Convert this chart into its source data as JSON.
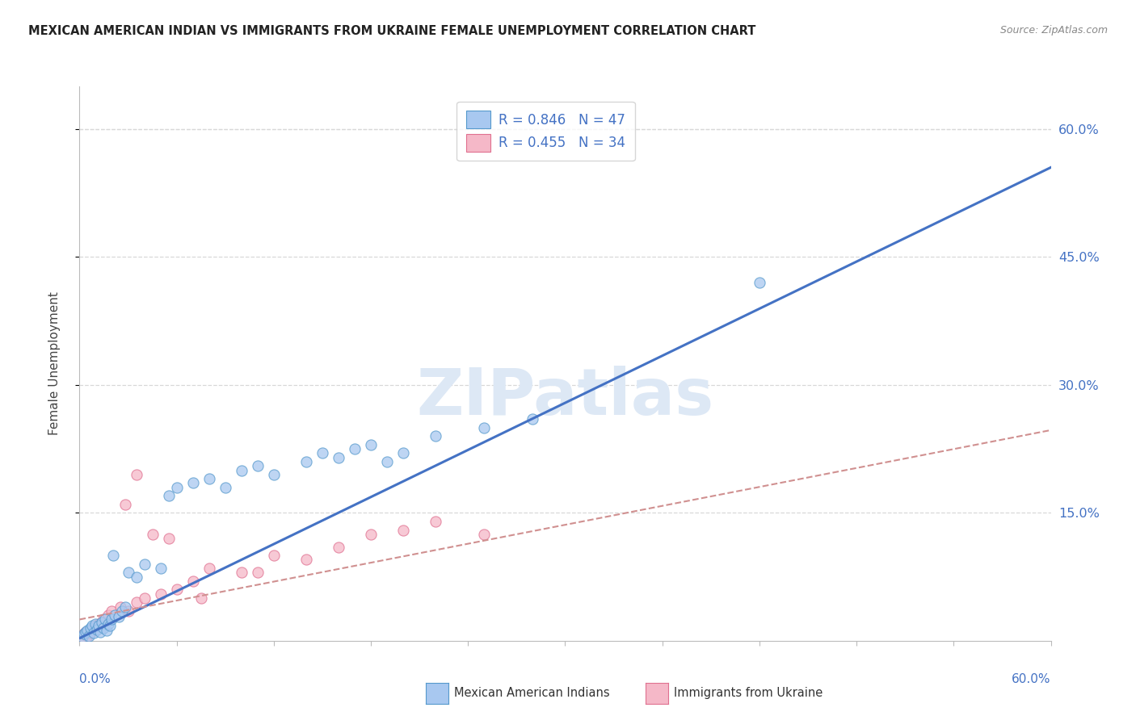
{
  "title": "MEXICAN AMERICAN INDIAN VS IMMIGRANTS FROM UKRAINE FEMALE UNEMPLOYMENT CORRELATION CHART",
  "source": "Source: ZipAtlas.com",
  "ylabel": "Female Unemployment",
  "y_tick_labels": [
    "15.0%",
    "30.0%",
    "45.0%",
    "60.0%"
  ],
  "y_tick_values": [
    15,
    30,
    45,
    60
  ],
  "blue_color": "#a8c8f0",
  "blue_edge_color": "#5599cc",
  "pink_color": "#f5b8c8",
  "pink_edge_color": "#e07090",
  "blue_line_color": "#4472c4",
  "pink_line_color": "#d09090",
  "watermark_color": "#dde8f5",
  "watermark_text": "ZIPatlas",
  "background_color": "#ffffff",
  "grid_color": "#d8d8d8",
  "xlim": [
    0,
    60
  ],
  "ylim": [
    0,
    65
  ],
  "blue_slope": 0.92,
  "blue_intercept": 0.3,
  "pink_slope": 0.37,
  "pink_intercept": 2.5,
  "blue_scatter_x": [
    0.2,
    0.3,
    0.4,
    0.5,
    0.6,
    0.7,
    0.8,
    0.9,
    1.0,
    1.1,
    1.2,
    1.3,
    1.4,
    1.5,
    1.6,
    1.7,
    1.8,
    1.9,
    2.0,
    2.2,
    2.4,
    2.6,
    2.8,
    3.0,
    3.5,
    4.0,
    5.0,
    5.5,
    6.0,
    7.0,
    8.0,
    9.0,
    10.0,
    11.0,
    12.0,
    14.0,
    15.0,
    16.0,
    17.0,
    18.0,
    19.0,
    20.0,
    22.0,
    25.0,
    28.0,
    42.0,
    2.1
  ],
  "blue_scatter_y": [
    0.5,
    0.8,
    1.0,
    1.2,
    0.6,
    1.5,
    1.8,
    0.9,
    2.0,
    1.3,
    1.8,
    1.0,
    2.2,
    1.5,
    2.5,
    1.2,
    2.0,
    1.8,
    2.5,
    3.0,
    2.8,
    3.5,
    4.0,
    8.0,
    7.5,
    9.0,
    8.5,
    17.0,
    18.0,
    18.5,
    19.0,
    18.0,
    20.0,
    20.5,
    19.5,
    21.0,
    22.0,
    21.5,
    22.5,
    23.0,
    21.0,
    22.0,
    24.0,
    25.0,
    26.0,
    42.0,
    10.0
  ],
  "pink_scatter_x": [
    0.2,
    0.3,
    0.4,
    0.5,
    0.6,
    0.7,
    0.8,
    1.0,
    1.2,
    1.5,
    1.8,
    2.0,
    2.5,
    3.0,
    3.5,
    4.0,
    5.0,
    6.0,
    7.0,
    8.0,
    10.0,
    12.0,
    14.0,
    16.0,
    18.0,
    20.0,
    22.0,
    3.5,
    2.8,
    4.5,
    5.5,
    7.5,
    11.0,
    25.0
  ],
  "pink_scatter_y": [
    0.5,
    0.8,
    1.0,
    0.6,
    1.2,
    0.9,
    1.5,
    1.8,
    2.0,
    2.5,
    3.0,
    3.5,
    4.0,
    3.5,
    4.5,
    5.0,
    5.5,
    6.0,
    7.0,
    8.5,
    8.0,
    10.0,
    9.5,
    11.0,
    12.5,
    13.0,
    14.0,
    19.5,
    16.0,
    12.5,
    12.0,
    5.0,
    8.0,
    12.5
  ]
}
